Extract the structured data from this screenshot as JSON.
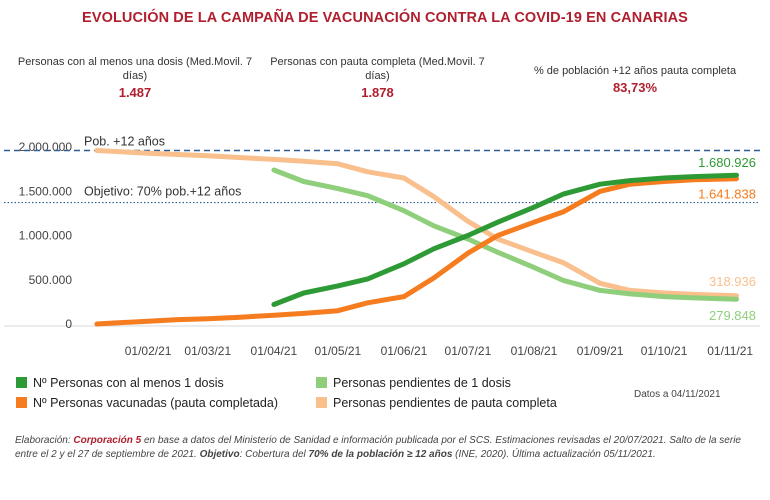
{
  "title": "EVOLUCIÓN DE LA CAMPAÑA DE VACUNACIÓN CONTRA LA COVID-19 EN CANARIAS",
  "kpis": {
    "first_dose": {
      "label": "Personas con al menos una dosis (Med.Movil. 7 días)",
      "value": "1.487"
    },
    "full": {
      "label": "Personas con pauta completa (Med.Movil. 7 días)",
      "value": "1.878"
    },
    "pct": {
      "label": "% de población +12 años pauta completa",
      "value": "83,73%"
    }
  },
  "legend": {
    "s1": "Nº Personas con al menos 1 dosis",
    "s2": "Nº Personas vacunadas (pauta completada)",
    "s3": "Personas pendientes de 1 dosis",
    "s4": "Personas pendientes de pauta completa"
  },
  "datestamp": "Datos a 04/11/2021",
  "footer": {
    "lead": "Elaboración: ",
    "org": "Corporación 5",
    "part1": " en base a datos del Ministerio de Sanidad e información publicada por el SCS. Estimaciones revisadas el 20/07/2021. Salto de la serie entre el 2 y el 27 de septiembre de 2021. ",
    "bold1": "Objetivo",
    "part2": ": Cobertura del ",
    "bold2": "70% de la población ≥ 12 años",
    "part3": " (INE, 2020). Última actualización 05/11/2021."
  },
  "colors": {
    "dark_green": "#2e9a35",
    "orange": "#f57c1f",
    "light_green": "#8fcf7c",
    "light_orange": "#f9bf8c",
    "ref_line": "#2f5d8f",
    "kpi_red": "#b01f2e"
  },
  "chart_data": {
    "type": "line",
    "x_axis": {
      "type": "date",
      "min": "2021-01-01",
      "max": "2021-11-15"
    },
    "x_ticks": [
      "01/02/21",
      "01/03/21",
      "01/04/21",
      "01/05/21",
      "01/06/21",
      "01/07/21",
      "01/08/21",
      "01/09/21",
      "01/10/21",
      "01/11/21"
    ],
    "y_ticks": [
      "0",
      "500.000",
      "1.000.000",
      "1.500.000",
      "2.000.000"
    ],
    "ylim": [
      0,
      2000000
    ],
    "grid": false,
    "reference_lines": [
      {
        "label": "Pob. +12 años",
        "y": 1960000,
        "style": "dashed"
      },
      {
        "label": "Objetivo: 70% pob.+12 años",
        "y": 1372000,
        "style": "dotted"
      }
    ],
    "end_labels": {
      "first_dose": "1.680.926",
      "full": "1.641.838",
      "pending_full": "318.936",
      "pending_first": "279.848"
    },
    "series": [
      {
        "name": "Nº Personas con al menos 1 dosis",
        "points": [
          [
            "2021-04-01",
            220000
          ],
          [
            "2021-04-15",
            350000
          ],
          [
            "2021-05-01",
            430000
          ],
          [
            "2021-05-15",
            510000
          ],
          [
            "2021-06-01",
            680000
          ],
          [
            "2021-06-15",
            850000
          ],
          [
            "2021-07-01",
            1000000
          ],
          [
            "2021-07-15",
            1150000
          ],
          [
            "2021-08-01",
            1320000
          ],
          [
            "2021-08-15",
            1470000
          ],
          [
            "2021-09-01",
            1580000
          ],
          [
            "2021-09-15",
            1620000
          ],
          [
            "2021-10-01",
            1650000
          ],
          [
            "2021-10-15",
            1665000
          ],
          [
            "2021-11-04",
            1680926
          ]
        ]
      },
      {
        "name": "Nº Personas vacunadas (pauta completada)",
        "points": [
          [
            "2021-01-08",
            0
          ],
          [
            "2021-01-15",
            10000
          ],
          [
            "2021-02-01",
            30000
          ],
          [
            "2021-02-15",
            50000
          ],
          [
            "2021-03-01",
            60000
          ],
          [
            "2021-03-15",
            75000
          ],
          [
            "2021-04-01",
            100000
          ],
          [
            "2021-04-15",
            120000
          ],
          [
            "2021-05-01",
            150000
          ],
          [
            "2021-05-15",
            240000
          ],
          [
            "2021-06-01",
            310000
          ],
          [
            "2021-06-15",
            520000
          ],
          [
            "2021-07-01",
            800000
          ],
          [
            "2021-07-15",
            1000000
          ],
          [
            "2021-08-01",
            1150000
          ],
          [
            "2021-08-15",
            1270000
          ],
          [
            "2021-09-01",
            1500000
          ],
          [
            "2021-09-15",
            1580000
          ],
          [
            "2021-10-01",
            1610000
          ],
          [
            "2021-10-15",
            1630000
          ],
          [
            "2021-11-04",
            1641838
          ]
        ]
      },
      {
        "name": "Personas pendientes de 1 dosis",
        "points": [
          [
            "2021-04-01",
            1740000
          ],
          [
            "2021-04-15",
            1610000
          ],
          [
            "2021-05-01",
            1530000
          ],
          [
            "2021-05-15",
            1450000
          ],
          [
            "2021-06-01",
            1280000
          ],
          [
            "2021-06-15",
            1110000
          ],
          [
            "2021-07-01",
            960000
          ],
          [
            "2021-07-15",
            810000
          ],
          [
            "2021-08-01",
            640000
          ],
          [
            "2021-08-15",
            490000
          ],
          [
            "2021-09-01",
            380000
          ],
          [
            "2021-09-15",
            340000
          ],
          [
            "2021-10-01",
            310000
          ],
          [
            "2021-10-15",
            295000
          ],
          [
            "2021-11-04",
            279848
          ]
        ]
      },
      {
        "name": "Personas pendientes de pauta completa",
        "points": [
          [
            "2021-01-08",
            1960000
          ],
          [
            "2021-02-01",
            1930000
          ],
          [
            "2021-03-01",
            1900000
          ],
          [
            "2021-04-01",
            1860000
          ],
          [
            "2021-04-15",
            1840000
          ],
          [
            "2021-05-01",
            1810000
          ],
          [
            "2021-05-15",
            1720000
          ],
          [
            "2021-06-01",
            1650000
          ],
          [
            "2021-06-15",
            1440000
          ],
          [
            "2021-07-01",
            1160000
          ],
          [
            "2021-07-15",
            960000
          ],
          [
            "2021-08-01",
            810000
          ],
          [
            "2021-08-15",
            690000
          ],
          [
            "2021-09-01",
            460000
          ],
          [
            "2021-09-15",
            380000
          ],
          [
            "2021-10-01",
            350000
          ],
          [
            "2021-10-15",
            335000
          ],
          [
            "2021-11-04",
            318936
          ]
        ]
      }
    ]
  }
}
